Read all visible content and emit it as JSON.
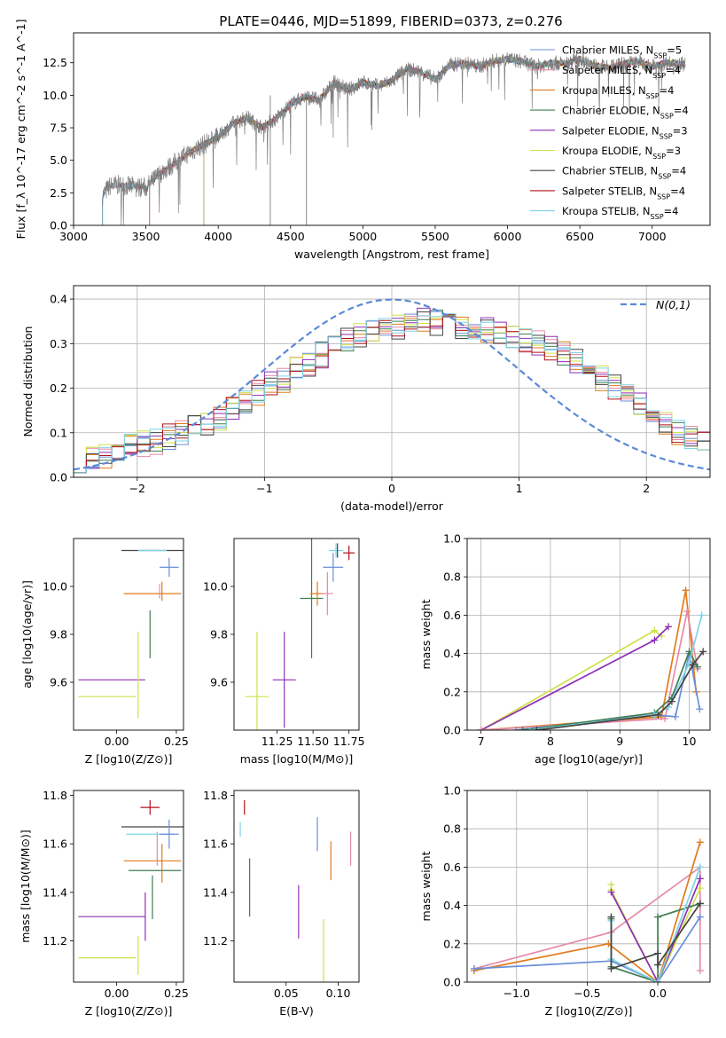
{
  "figure_title": "PLATE=0446, MJD=51899, FIBERID=0373, z=0.276",
  "chart_data": [
    {
      "id": "spectrum",
      "type": "line",
      "title": "PLATE=0446, MJD=51899, FIBERID=0373, z=0.276",
      "xlabel": "wavelength [Angstrom, rest frame]",
      "ylabel": "Flux [f_λ 10^-17 erg cm^-2 s^-1 A^-1]",
      "xlim": [
        3000,
        7400
      ],
      "ylim": [
        0,
        14.8
      ],
      "xticks": [
        3000,
        3500,
        4000,
        4500,
        5000,
        5500,
        6000,
        6500,
        7000
      ],
      "yticks": [
        0.0,
        2.5,
        5.0,
        7.5,
        10.0,
        12.5
      ],
      "grid": false,
      "legend_position": "top-right",
      "data_x": [
        3200,
        3250,
        3300,
        3400,
        3500,
        3600,
        3700,
        3800,
        3900,
        4000,
        4100,
        4200,
        4300,
        4400,
        4500,
        4600,
        4700,
        4800,
        4900,
        5000,
        5100,
        5200,
        5300,
        5400,
        5500,
        5600,
        5700,
        5800,
        5900,
        6000,
        6100,
        6200,
        6300,
        6400,
        6500,
        6600,
        6700,
        6800,
        6900,
        7000,
        7100,
        7200
      ],
      "data_y": [
        2.3,
        3.0,
        3.1,
        3.0,
        2.9,
        4.0,
        4.8,
        5.6,
        6.2,
        6.8,
        7.8,
        8.3,
        7.5,
        8.2,
        9.3,
        9.9,
        9.6,
        11.0,
        10.4,
        11.0,
        10.7,
        11.1,
        12.0,
        11.8,
        11.2,
        12.3,
        12.5,
        12.2,
        12.6,
        12.8,
        12.6,
        12.2,
        12.5,
        12.4,
        12.8,
        12.3,
        12.1,
        12.4,
        12.6,
        12.2,
        12.5,
        12.4
      ],
      "model_starts": {
        "MILES": 3525,
        "ELODIE": 3900,
        "STELIB": 3200
      },
      "series": [
        {
          "name": "Chabrier MILES, N_SSP=5",
          "color": "#6a8fd8"
        },
        {
          "name": "Salpeter MILES, N_SSP=4",
          "color": "#e68aa8"
        },
        {
          "name": "Kroupa MILES, N_SSP=4",
          "color": "#e07b1c"
        },
        {
          "name": "Chabrier ELODIE, N_SSP=4",
          "color": "#3f7d52"
        },
        {
          "name": "Salpeter ELODIE, N_SSP=3",
          "color": "#8e2fb5"
        },
        {
          "name": "Kroupa ELODIE, N_SSP=3",
          "color": "#cfe04a"
        },
        {
          "name": "Chabrier STELIB, N_SSP=4",
          "color": "#444444"
        },
        {
          "name": "Salpeter STELIB, N_SSP=4",
          "color": "#b11218"
        },
        {
          "name": "Kroupa STELIB, N_SSP=4",
          "color": "#7ed4e6"
        }
      ]
    },
    {
      "id": "residuals",
      "type": "histogram",
      "xlabel": "(data-model)/error",
      "ylabel": "Normed distribution",
      "xlim": [
        -2.5,
        2.5
      ],
      "ylim": [
        0,
        0.43
      ],
      "xticks": [
        -2,
        -1,
        0,
        1,
        2
      ],
      "yticks": [
        0.0,
        0.1,
        0.2,
        0.3,
        0.4
      ],
      "grid": true,
      "legend_position": "top-right",
      "legend": "N(0,1)",
      "bin_width": 0.1,
      "bin_start": -2.5,
      "base_curve": [
        0.04,
        0.045,
        0.05,
        0.06,
        0.07,
        0.075,
        0.08,
        0.09,
        0.1,
        0.11,
        0.12,
        0.135,
        0.15,
        0.17,
        0.19,
        0.21,
        0.22,
        0.24,
        0.255,
        0.275,
        0.29,
        0.305,
        0.32,
        0.33,
        0.335,
        0.34,
        0.345,
        0.35,
        0.348,
        0.345,
        0.34,
        0.335,
        0.33,
        0.325,
        0.32,
        0.31,
        0.3,
        0.29,
        0.275,
        0.26,
        0.24,
        0.22,
        0.2,
        0.18,
        0.16,
        0.14,
        0.12,
        0.1,
        0.09,
        0.08
      ]
    },
    {
      "id": "age_vs_Z",
      "type": "errorbar",
      "xlabel": "Z [log10(Z/Z⊙)]",
      "ylabel": "age  [log10(age/yr)]",
      "xlim": [
        -0.18,
        0.28
      ],
      "ylim": [
        9.4,
        10.2
      ],
      "xticks": [
        0.0,
        0.25
      ],
      "yticks": [
        9.6,
        9.8,
        10.0
      ],
      "points": [
        {
          "c": 4,
          "x": -0.02,
          "xe": 0.14,
          "y": 9.61,
          "ye": 0.0
        },
        {
          "c": 5,
          "x": -0.04,
          "xe": 0.12,
          "y": 9.54,
          "ye": 0.0
        },
        {
          "c": 5,
          "x": 0.09,
          "xe": 0.0,
          "y": 9.63,
          "ye": 0.18
        },
        {
          "c": 3,
          "x": 0.14,
          "xe": 0.0,
          "y": 9.8,
          "ye": 0.1
        },
        {
          "c": 6,
          "x": 0.15,
          "xe": 0.13,
          "y": 10.15,
          "ye": 0.0
        },
        {
          "c": 2,
          "x": 0.15,
          "xe": 0.12,
          "y": 9.97,
          "ye": 0.0
        },
        {
          "c": 3,
          "x": 0.14,
          "xe": 0.0,
          "y": 9.95,
          "ye": 0.0
        },
        {
          "c": 1,
          "x": 0.18,
          "xe": 0.0,
          "y": 9.98,
          "ye": 0.03
        },
        {
          "c": 2,
          "x": 0.19,
          "xe": 0.0,
          "y": 9.98,
          "ye": 0.04
        },
        {
          "c": 0,
          "x": 0.22,
          "xe": 0.04,
          "y": 10.08,
          "ye": 0.04
        },
        {
          "c": 8,
          "x": 0.15,
          "xe": 0.06,
          "y": 10.15,
          "ye": 0.0
        }
      ]
    },
    {
      "id": "age_vs_mass",
      "type": "errorbar",
      "xlabel": "mass [log10(M/M⊙)]",
      "ylabel": "",
      "xlim": [
        10.95,
        11.82
      ],
      "ylim": [
        9.4,
        10.2
      ],
      "xticks": [
        11.25,
        11.5,
        11.75
      ],
      "yticks": [
        9.6,
        9.8,
        10.0
      ],
      "points": [
        {
          "c": 5,
          "x": 11.11,
          "xe": 0.08,
          "y": 9.54,
          "ye": 0.27
        },
        {
          "c": 4,
          "x": 11.3,
          "xe": 0.08,
          "y": 9.61,
          "ye": 0.2
        },
        {
          "c": 3,
          "x": 11.49,
          "xe": 0.08,
          "y": 9.95,
          "ye": 0.25
        },
        {
          "c": 2,
          "x": 11.53,
          "xe": 0.05,
          "y": 9.97,
          "ye": 0.05
        },
        {
          "c": 1,
          "x": 11.6,
          "xe": 0.04,
          "y": 9.97,
          "ye": 0.09
        },
        {
          "c": 0,
          "x": 11.64,
          "xe": 0.07,
          "y": 10.08,
          "ye": 0.06
        },
        {
          "c": 8,
          "x": 11.66,
          "xe": 0.05,
          "y": 10.15,
          "ye": 0.03
        },
        {
          "c": 7,
          "x": 11.75,
          "xe": 0.04,
          "y": 10.14,
          "ye": 0.03
        },
        {
          "c": 6,
          "x": 11.67,
          "xe": 0.0,
          "y": 10.15,
          "ye": 0.03
        }
      ]
    },
    {
      "id": "mass_weight_vs_age",
      "type": "line",
      "xlabel": "age  [log10(age/yr)]",
      "ylabel": "mass weight",
      "xlim": [
        6.8,
        10.3
      ],
      "ylim": [
        0,
        1.0
      ],
      "xticks": [
        7,
        8,
        9,
        10
      ],
      "yticks": [
        0.0,
        0.2,
        0.4,
        0.6,
        0.8,
        1.0
      ],
      "grid": true,
      "series": [
        {
          "c": 5,
          "x": [
            7.0,
            9.5,
            9.6
          ],
          "y": [
            0.0,
            0.52,
            0.49
          ]
        },
        {
          "c": 4,
          "x": [
            7.0,
            9.5,
            9.7
          ],
          "y": [
            0.0,
            0.47,
            0.54
          ]
        },
        {
          "c": 2,
          "x": [
            7.0,
            9.6,
            9.95,
            10.1
          ],
          "y": [
            0.0,
            0.07,
            0.73,
            0.2
          ]
        },
        {
          "c": 1,
          "x": [
            7.0,
            9.65,
            9.97,
            10.12
          ],
          "y": [
            0.0,
            0.06,
            0.62,
            0.32
          ]
        },
        {
          "c": 0,
          "x": [
            7.5,
            9.5,
            9.8,
            10.0,
            10.15
          ],
          "y": [
            0.0,
            0.08,
            0.07,
            0.4,
            0.11
          ]
        },
        {
          "c": 3,
          "x": [
            7.6,
            9.5,
            9.75,
            10.0,
            10.12
          ],
          "y": [
            0.0,
            0.09,
            0.17,
            0.41,
            0.33
          ]
        },
        {
          "c": 8,
          "x": [
            7.7,
            9.5,
            9.7,
            10.0,
            10.18
          ],
          "y": [
            0.0,
            0.08,
            0.12,
            0.35,
            0.6
          ]
        },
        {
          "c": 6,
          "x": [
            7.8,
            9.55,
            9.75,
            10.05,
            10.2
          ],
          "y": [
            0.0,
            0.08,
            0.15,
            0.34,
            0.41
          ]
        }
      ]
    },
    {
      "id": "mass_vs_Z",
      "type": "errorbar",
      "xlabel": "Z [log10(Z/Z⊙)]",
      "ylabel": "mass [log10(M/M⊙)]",
      "xlim": [
        -0.18,
        0.28
      ],
      "ylim": [
        11.03,
        11.82
      ],
      "xticks": [
        0.0,
        0.25
      ],
      "yticks": [
        11.2,
        11.4,
        11.6,
        11.8
      ],
      "points": [
        {
          "c": 5,
          "x": -0.04,
          "xe": 0.12,
          "y": 11.13,
          "ye": 0.0
        },
        {
          "c": 5,
          "x": 0.09,
          "xe": 0.0,
          "y": 11.14,
          "ye": 0.08
        },
        {
          "c": 4,
          "x": -0.02,
          "xe": 0.14,
          "y": 11.3,
          "ye": 0.0
        },
        {
          "c": 4,
          "x": 0.12,
          "xe": 0.0,
          "y": 11.3,
          "ye": 0.1
        },
        {
          "c": 3,
          "x": 0.15,
          "xe": 0.0,
          "y": 11.38,
          "ye": 0.09
        },
        {
          "c": 3,
          "x": 0.16,
          "xe": 0.11,
          "y": 11.49,
          "ye": 0.0
        },
        {
          "c": 2,
          "x": 0.15,
          "xe": 0.12,
          "y": 11.53,
          "ye": 0.0
        },
        {
          "c": 2,
          "x": 0.19,
          "xe": 0.0,
          "y": 11.52,
          "ye": 0.08
        },
        {
          "c": 1,
          "x": 0.17,
          "xe": 0.0,
          "y": 11.58,
          "ye": 0.07
        },
        {
          "c": 8,
          "x": 0.14,
          "xe": 0.1,
          "y": 11.64,
          "ye": 0.0
        },
        {
          "c": 6,
          "x": 0.15,
          "xe": 0.13,
          "y": 11.67,
          "ye": 0.0
        },
        {
          "c": 0,
          "x": 0.22,
          "xe": 0.04,
          "y": 11.64,
          "ye": 0.06
        },
        {
          "c": 7,
          "x": 0.14,
          "xe": 0.04,
          "y": 11.75,
          "ye": 0.03
        }
      ]
    },
    {
      "id": "mass_vs_EBV",
      "type": "errorbar",
      "xlabel": "E(B-V)",
      "ylabel": "",
      "xlim": [
        0.0,
        0.12
      ],
      "ylim": [
        11.03,
        11.82
      ],
      "xticks": [
        0.05,
        0.1
      ],
      "yticks": [
        11.2,
        11.4,
        11.6,
        11.8
      ],
      "points": [
        {
          "c": 7,
          "x": 0.01,
          "xe": 0.0,
          "y": 11.75,
          "ye": 0.03
        },
        {
          "c": 8,
          "x": 0.006,
          "xe": 0.0,
          "y": 11.66,
          "ye": 0.03
        },
        {
          "c": 3,
          "x": 0.015,
          "xe": 0.0,
          "y": 11.42,
          "ye": 0.12
        },
        {
          "c": 4,
          "x": 0.062,
          "xe": 0.0,
          "y": 11.32,
          "ye": 0.11
        },
        {
          "c": 5,
          "x": 0.086,
          "xe": 0.0,
          "y": 11.14,
          "ye": 0.15
        },
        {
          "c": 0,
          "x": 0.08,
          "xe": 0.0,
          "y": 11.64,
          "ye": 0.07
        },
        {
          "c": 2,
          "x": 0.093,
          "xe": 0.0,
          "y": 11.53,
          "ye": 0.08
        },
        {
          "c": 1,
          "x": 0.112,
          "xe": 0.0,
          "y": 11.58,
          "ye": 0.07
        }
      ]
    },
    {
      "id": "mass_weight_vs_Z",
      "type": "line",
      "xlabel": "Z [log10(Z/Z⊙)]",
      "ylabel": "mass weight",
      "xlim": [
        -1.35,
        0.37
      ],
      "ylim": [
        0,
        1.0
      ],
      "xticks": [
        -1.0,
        -0.5,
        0.0
      ],
      "yticks": [
        0.0,
        0.2,
        0.4,
        0.6,
        0.8,
        1.0
      ],
      "grid": true,
      "series": [
        {
          "c": 1,
          "x": [
            -1.3,
            -0.33,
            0.3,
            0.3
          ],
          "y": [
            0.07,
            0.26,
            0.6,
            0.06
          ]
        },
        {
          "c": 2,
          "x": [
            -1.3,
            -0.35,
            0.0,
            0.3
          ],
          "y": [
            0.06,
            0.2,
            0.0,
            0.73
          ]
        },
        {
          "c": 0,
          "x": [
            -1.3,
            -0.33,
            0.0,
            0.3
          ],
          "y": [
            0.07,
            0.11,
            0.0,
            0.34
          ]
        },
        {
          "c": 5,
          "x": [
            -0.33,
            -0.33,
            0.0,
            0.3
          ],
          "y": [
            0.51,
            0.48,
            0.0,
            0.49
          ]
        },
        {
          "c": 4,
          "x": [
            -0.33,
            0.0,
            0.3
          ],
          "y": [
            0.47,
            0.0,
            0.54
          ]
        },
        {
          "c": 3,
          "x": [
            -0.33,
            -0.33,
            0.0,
            0.0,
            0.3
          ],
          "y": [
            0.33,
            0.08,
            0.0,
            0.34,
            0.41
          ]
        },
        {
          "c": 8,
          "x": [
            -0.33,
            -0.33,
            0.0,
            0.3
          ],
          "y": [
            0.32,
            0.12,
            0.0,
            0.6
          ]
        },
        {
          "c": 6,
          "x": [
            -0.33,
            -0.33,
            0.0,
            0.0,
            0.3
          ],
          "y": [
            0.34,
            0.07,
            0.15,
            0.09,
            0.41
          ]
        }
      ]
    }
  ]
}
